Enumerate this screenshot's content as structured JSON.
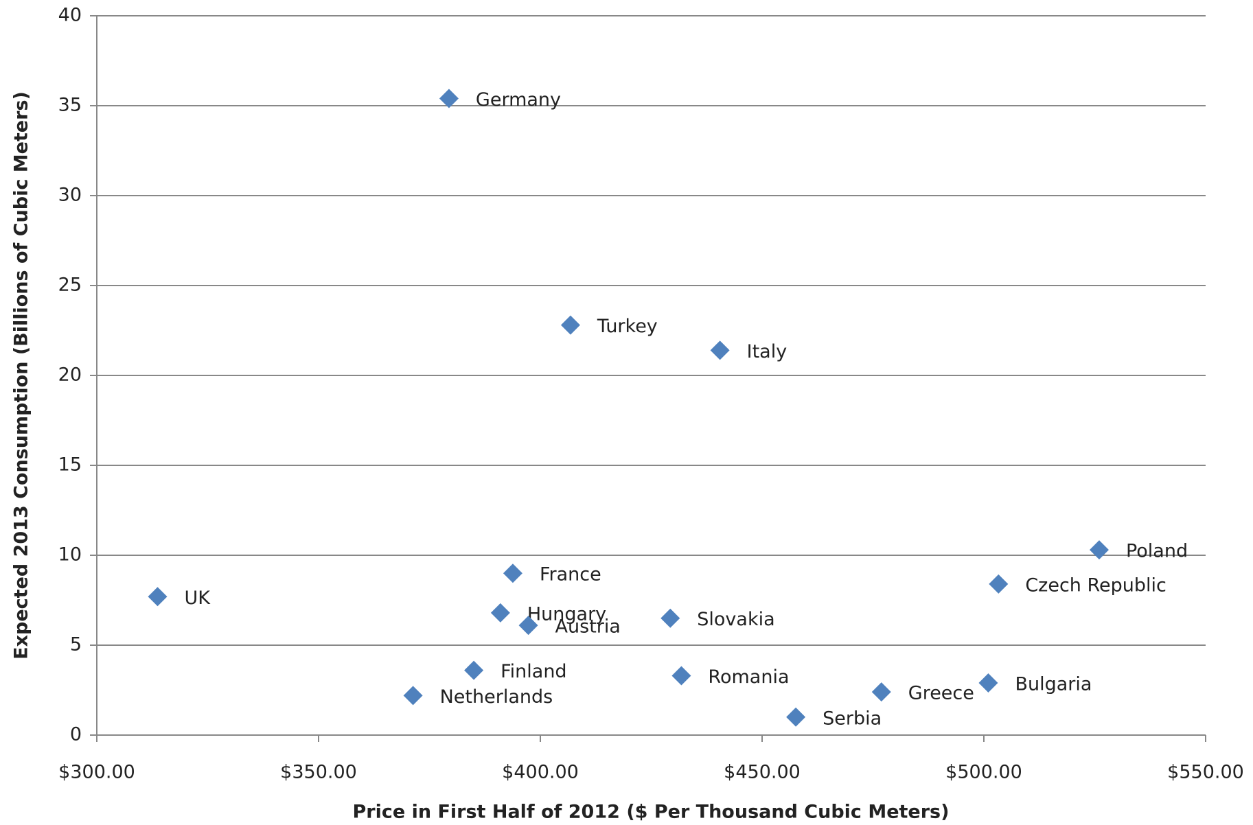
{
  "chart_data": {
    "type": "scatter",
    "x_label": "Price in First Half of 2012 ($ Per Thousand  Cubic Meters)",
    "y_label": "Expected  2013 Consumption  (Billions of Cubic Meters)",
    "labels": [
      "Germany",
      "Turkey",
      "Italy",
      "Poland",
      "Czech Republic",
      "France",
      "UK",
      "Hungary",
      "Austria",
      "Slovakia",
      "Finland",
      "Netherlands",
      "Romania",
      "Serbia",
      "Greece",
      "Bulgaria"
    ],
    "x": [
      379.4,
      406.8,
      440.5,
      526,
      503.3,
      393.8,
      313.7,
      391,
      397.3,
      429.3,
      385,
      371.3,
      431.8,
      457.6,
      476.9,
      501
    ],
    "values": [
      35.4,
      22.8,
      21.4,
      10.3,
      8.4,
      9.0,
      7.7,
      6.8,
      6.1,
      6.5,
      3.6,
      2.2,
      3.3,
      1.0,
      2.4,
      2.9
    ],
    "color": "#4f81bd",
    "xlim": [
      300,
      550
    ],
    "xticks": [
      {
        "value": 300,
        "label": "$300.00"
      },
      {
        "value": 350,
        "label": "$350.00"
      },
      {
        "value": 400,
        "label": "$400.00"
      },
      {
        "value": 450,
        "label": "$450.00"
      },
      {
        "value": 500,
        "label": "$500.00"
      },
      {
        "value": 550,
        "label": "$550.00"
      }
    ],
    "ylim": [
      0,
      40
    ],
    "yticks": [
      0,
      5,
      10,
      15,
      20,
      25,
      30,
      35,
      40
    ],
    "grid": true
  }
}
